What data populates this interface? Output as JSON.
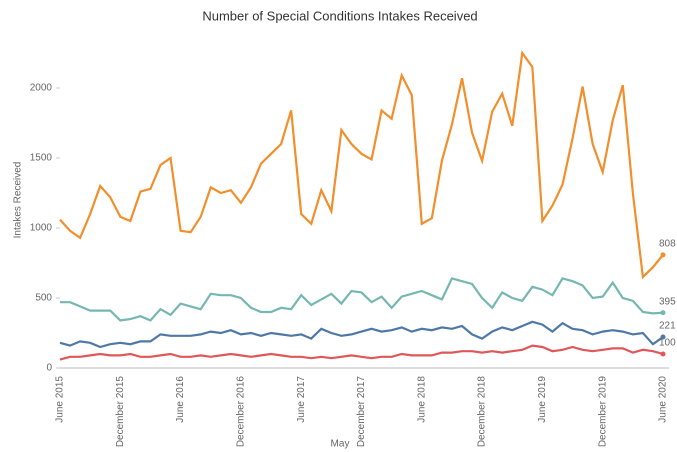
{
  "chart_data": {
    "type": "line",
    "title": "Number of Special Conditions Intakes Received",
    "x_label": "May",
    "y_label": "Intakes Received",
    "categories": [
      "June 2015",
      null,
      null,
      null,
      null,
      null,
      "December 2015",
      null,
      null,
      null,
      null,
      null,
      "June 2016",
      null,
      null,
      null,
      null,
      null,
      "December 2016",
      null,
      null,
      null,
      null,
      null,
      "June 2017",
      null,
      null,
      null,
      null,
      null,
      "December 2017",
      null,
      null,
      null,
      null,
      null,
      "June 2018",
      null,
      null,
      null,
      null,
      null,
      "December 2018",
      null,
      null,
      null,
      null,
      null,
      "June 2019",
      null,
      null,
      null,
      null,
      null,
      "December 2019",
      null,
      null,
      null,
      null,
      null,
      "June 2020"
    ],
    "ylim": [
      0,
      2300
    ],
    "yticks": [
      0,
      500,
      1000,
      1500,
      2000
    ],
    "grid": false,
    "end_labels": true,
    "series": [
      {
        "color": "#f28e2b",
        "values": [
          1060,
          980,
          930,
          1100,
          1300,
          1220,
          1080,
          1050,
          1260,
          1280,
          1450,
          1500,
          980,
          970,
          1080,
          1290,
          1250,
          1270,
          1180,
          1290,
          1460,
          1530,
          1600,
          1840,
          1100,
          1030,
          1270,
          1120,
          1700,
          1600,
          1530,
          1490,
          1840,
          1780,
          2090,
          1950,
          1030,
          1070,
          1480,
          1740,
          2070,
          1680,
          1480,
          1830,
          1960,
          1730,
          2250,
          2150,
          1050,
          1160,
          1310,
          1640,
          2010,
          1600,
          1400,
          1770,
          2020,
          1250,
          650,
          720,
          808
        ]
      },
      {
        "color": "#76b7b2",
        "values": [
          470,
          470,
          440,
          410,
          410,
          410,
          340,
          350,
          370,
          340,
          420,
          380,
          460,
          440,
          420,
          530,
          520,
          520,
          500,
          430,
          400,
          400,
          430,
          420,
          520,
          450,
          490,
          530,
          460,
          550,
          540,
          470,
          510,
          430,
          510,
          530,
          550,
          520,
          490,
          640,
          620,
          600,
          500,
          430,
          540,
          500,
          480,
          580,
          560,
          520,
          640,
          620,
          590,
          500,
          510,
          610,
          500,
          480,
          400,
          390,
          395
        ]
      },
      {
        "color": "#4e79a7",
        "values": [
          180,
          160,
          190,
          180,
          150,
          170,
          180,
          170,
          190,
          190,
          240,
          230,
          230,
          230,
          240,
          260,
          250,
          270,
          240,
          250,
          230,
          250,
          240,
          230,
          240,
          210,
          280,
          250,
          230,
          240,
          260,
          280,
          260,
          270,
          290,
          260,
          280,
          270,
          290,
          280,
          300,
          240,
          210,
          260,
          290,
          270,
          300,
          330,
          310,
          260,
          320,
          280,
          270,
          240,
          260,
          270,
          260,
          240,
          250,
          170,
          221
        ]
      },
      {
        "color": "#e15759",
        "values": [
          60,
          80,
          80,
          90,
          100,
          90,
          90,
          100,
          80,
          80,
          90,
          100,
          80,
          80,
          90,
          80,
          90,
          100,
          90,
          80,
          90,
          100,
          90,
          80,
          80,
          70,
          80,
          70,
          80,
          90,
          80,
          70,
          80,
          80,
          100,
          90,
          90,
          90,
          110,
          110,
          120,
          120,
          110,
          120,
          110,
          120,
          130,
          160,
          150,
          120,
          130,
          150,
          130,
          120,
          130,
          140,
          140,
          110,
          130,
          120,
          100
        ]
      }
    ]
  }
}
